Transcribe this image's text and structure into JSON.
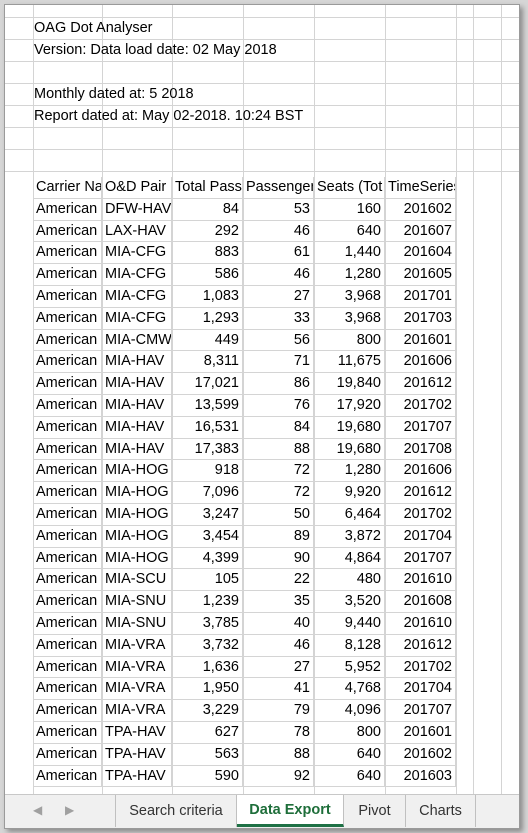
{
  "meta": {
    "app_title": "OAG Dot Analyser",
    "version_line": "Version:  Data load date: 02 May 2018",
    "monthly_line": "Monthly dated at: 5 2018",
    "report_line": "Report dated at: May 02-2018. 10:24 BST"
  },
  "table": {
    "headers": [
      "Carrier Name",
      "O&D Pair (",
      "Total Pass",
      "Passengers",
      "Seats (Tot",
      "TimeSeries"
    ],
    "rows": [
      [
        "American",
        "DFW-HAV",
        "84",
        "53",
        "160",
        "201602"
      ],
      [
        "American",
        "LAX-HAV",
        "292",
        "46",
        "640",
        "201607"
      ],
      [
        "American",
        "MIA-CFG",
        "883",
        "61",
        "1,440",
        "201604"
      ],
      [
        "American",
        "MIA-CFG",
        "586",
        "46",
        "1,280",
        "201605"
      ],
      [
        "American",
        "MIA-CFG",
        "1,083",
        "27",
        "3,968",
        "201701"
      ],
      [
        "American",
        "MIA-CFG",
        "1,293",
        "33",
        "3,968",
        "201703"
      ],
      [
        "American",
        "MIA-CMW",
        "449",
        "56",
        "800",
        "201601"
      ],
      [
        "American",
        "MIA-HAV",
        "8,311",
        "71",
        "11,675",
        "201606"
      ],
      [
        "American",
        "MIA-HAV",
        "17,021",
        "86",
        "19,840",
        "201612"
      ],
      [
        "American",
        "MIA-HAV",
        "13,599",
        "76",
        "17,920",
        "201702"
      ],
      [
        "American",
        "MIA-HAV",
        "16,531",
        "84",
        "19,680",
        "201707"
      ],
      [
        "American",
        "MIA-HAV",
        "17,383",
        "88",
        "19,680",
        "201708"
      ],
      [
        "American",
        "MIA-HOG",
        "918",
        "72",
        "1,280",
        "201606"
      ],
      [
        "American",
        "MIA-HOG",
        "7,096",
        "72",
        "9,920",
        "201612"
      ],
      [
        "American",
        "MIA-HOG",
        "3,247",
        "50",
        "6,464",
        "201702"
      ],
      [
        "American",
        "MIA-HOG",
        "3,454",
        "89",
        "3,872",
        "201704"
      ],
      [
        "American",
        "MIA-HOG",
        "4,399",
        "90",
        "4,864",
        "201707"
      ],
      [
        "American",
        "MIA-SCU",
        "105",
        "22",
        "480",
        "201610"
      ],
      [
        "American",
        "MIA-SNU",
        "1,239",
        "35",
        "3,520",
        "201608"
      ],
      [
        "American",
        "MIA-SNU",
        "3,785",
        "40",
        "9,440",
        "201610"
      ],
      [
        "American",
        "MIA-VRA",
        "3,732",
        "46",
        "8,128",
        "201612"
      ],
      [
        "American",
        "MIA-VRA",
        "1,636",
        "27",
        "5,952",
        "201702"
      ],
      [
        "American",
        "MIA-VRA",
        "1,950",
        "41",
        "4,768",
        "201704"
      ],
      [
        "American",
        "MIA-VRA",
        "3,229",
        "79",
        "4,096",
        "201707"
      ],
      [
        "American",
        "TPA-HAV",
        "627",
        "78",
        "800",
        "201601"
      ],
      [
        "American",
        "TPA-HAV",
        "563",
        "88",
        "640",
        "201602"
      ],
      [
        "American",
        "TPA-HAV",
        "590",
        "92",
        "640",
        "201603"
      ]
    ]
  },
  "tabs": {
    "prev_icon": "◀",
    "next_icon": "▶",
    "items": [
      {
        "label": "Search criteria",
        "active": false
      },
      {
        "label": "Data Export",
        "active": true
      },
      {
        "label": "Pivot",
        "active": false
      },
      {
        "label": "Charts",
        "active": false
      }
    ]
  },
  "colors": {
    "active_tab_text": "#1e6e3a",
    "active_tab_underline": "#1e7145"
  }
}
